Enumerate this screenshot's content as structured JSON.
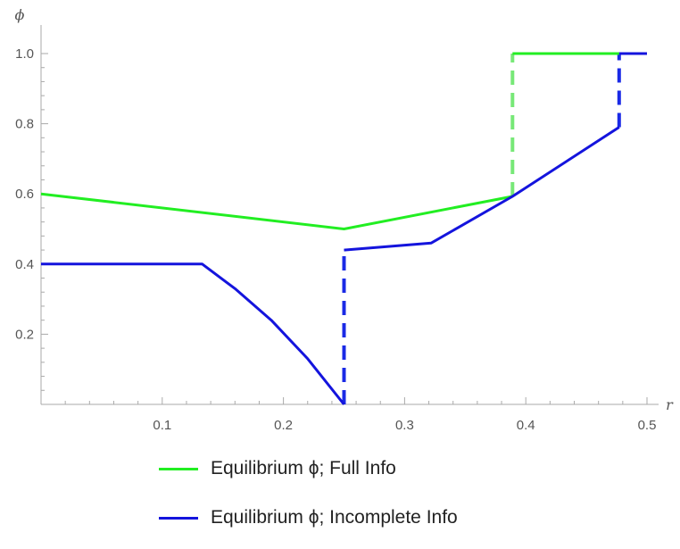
{
  "chart_data": {
    "type": "line",
    "xlabel": "r",
    "ylabel": "ϕ",
    "xlim": [
      0,
      0.5
    ],
    "ylim": [
      0,
      1.0
    ],
    "xticks": [
      {
        "value": 0.1,
        "label": "0.1"
      },
      {
        "value": 0.2,
        "label": "0.2"
      },
      {
        "value": 0.3,
        "label": "0.3"
      },
      {
        "value": 0.4,
        "label": "0.4"
      },
      {
        "value": 0.5,
        "label": "0.5"
      }
    ],
    "yticks": [
      {
        "value": 0.2,
        "label": "0.2"
      },
      {
        "value": 0.4,
        "label": "0.4"
      },
      {
        "value": 0.6,
        "label": "0.6"
      },
      {
        "value": 0.8,
        "label": "0.8"
      },
      {
        "value": 1.0,
        "label": "1.0"
      }
    ],
    "grid": false,
    "legend_position": "bottom",
    "series": [
      {
        "name": "Equilibrium ϕ; Full Info",
        "color": "#22ee22",
        "dash_color": "#77e877",
        "segments": [
          [
            [
              0,
              0.6
            ],
            [
              0.25,
              0.5
            ],
            [
              0.389,
              0.593
            ]
          ],
          [
            [
              0.389,
              1.0
            ],
            [
              0.5,
              1.0
            ]
          ]
        ],
        "jumps": [
          [
            [
              0.389,
              0.593
            ],
            [
              0.389,
              1.0
            ]
          ]
        ]
      },
      {
        "name": "Equilibrium ϕ; Incomplete Info",
        "color": "#1414dd",
        "dash_color": "#1a2ae6",
        "segments": [
          [
            [
              0,
              0.4
            ],
            [
              0.133,
              0.4
            ],
            [
              0.16,
              0.33
            ],
            [
              0.19,
              0.24
            ],
            [
              0.22,
              0.13
            ],
            [
              0.25,
              0.0
            ]
          ],
          [
            [
              0.25,
              0.44
            ],
            [
              0.322,
              0.46
            ],
            [
              0.389,
              0.593
            ],
            [
              0.477,
              0.79
            ]
          ],
          [
            [
              0.477,
              1.0
            ],
            [
              0.5,
              1.0
            ]
          ]
        ],
        "jumps": [
          [
            [
              0.25,
              0.0
            ],
            [
              0.25,
              0.44
            ]
          ],
          [
            [
              0.477,
              0.79
            ],
            [
              0.477,
              1.0
            ]
          ]
        ]
      }
    ]
  }
}
